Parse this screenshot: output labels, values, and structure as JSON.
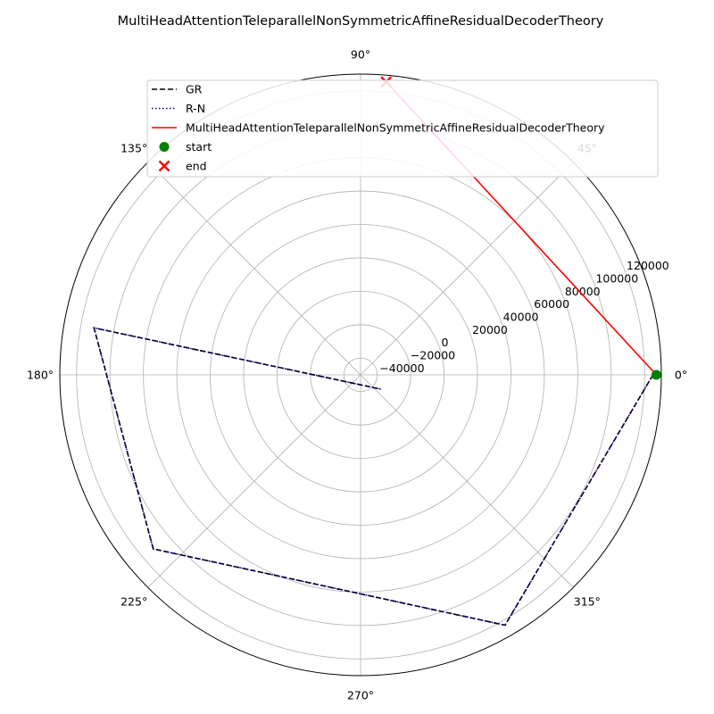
{
  "chart_data": {
    "type": "polar-line",
    "title": "MultiHeadAttentionTeleparallelNonSymmetricAffineResidualDecoderTheory",
    "angle_ticks": [
      "0°",
      "45°",
      "90°",
      "135°",
      "180°",
      "225°",
      "270°",
      "315°"
    ],
    "radial_ticks": [
      -40000,
      -20000,
      0,
      20000,
      40000,
      60000,
      80000,
      100000,
      120000
    ],
    "radial_tick_labels": [
      "−40000",
      "−20000",
      "0",
      "20000",
      "40000",
      "60000",
      "80000",
      "100000",
      "120000"
    ],
    "rlim": [
      -50000,
      130000
    ],
    "grid": true,
    "legend_position": "upper-center",
    "series": [
      {
        "name": "GR",
        "color": "#000000",
        "style": "dashed",
        "points": [
          {
            "theta": 0,
            "r": 125000
          },
          {
            "theta": 300,
            "r": 123000
          },
          {
            "theta": 220,
            "r": 112000
          },
          {
            "theta": 170,
            "r": 112000
          },
          {
            "theta": 325,
            "r": -35000
          }
        ]
      },
      {
        "name": "R-N",
        "color": "#00008b",
        "style": "dotted",
        "points": [
          {
            "theta": 0,
            "r": 125000
          },
          {
            "theta": 300,
            "r": 123000
          },
          {
            "theta": 220,
            "r": 112000
          },
          {
            "theta": 170,
            "r": 112000
          },
          {
            "theta": 325,
            "r": -35000
          }
        ]
      },
      {
        "name": "MultiHeadAttentionTeleparallelNonSymmetricAffineResidualDecoderTheory",
        "color": "#ff0000",
        "style": "solid",
        "points": [
          {
            "theta": 0,
            "r": 127000
          },
          {
            "theta": 85,
            "r": 126000
          }
        ]
      }
    ],
    "markers": [
      {
        "name": "start",
        "color": "#008000",
        "shape": "circle",
        "theta": 0,
        "r": 127000
      },
      {
        "name": "end",
        "color": "#ff0000",
        "shape": "x",
        "theta": 85,
        "r": 126000
      }
    ]
  }
}
